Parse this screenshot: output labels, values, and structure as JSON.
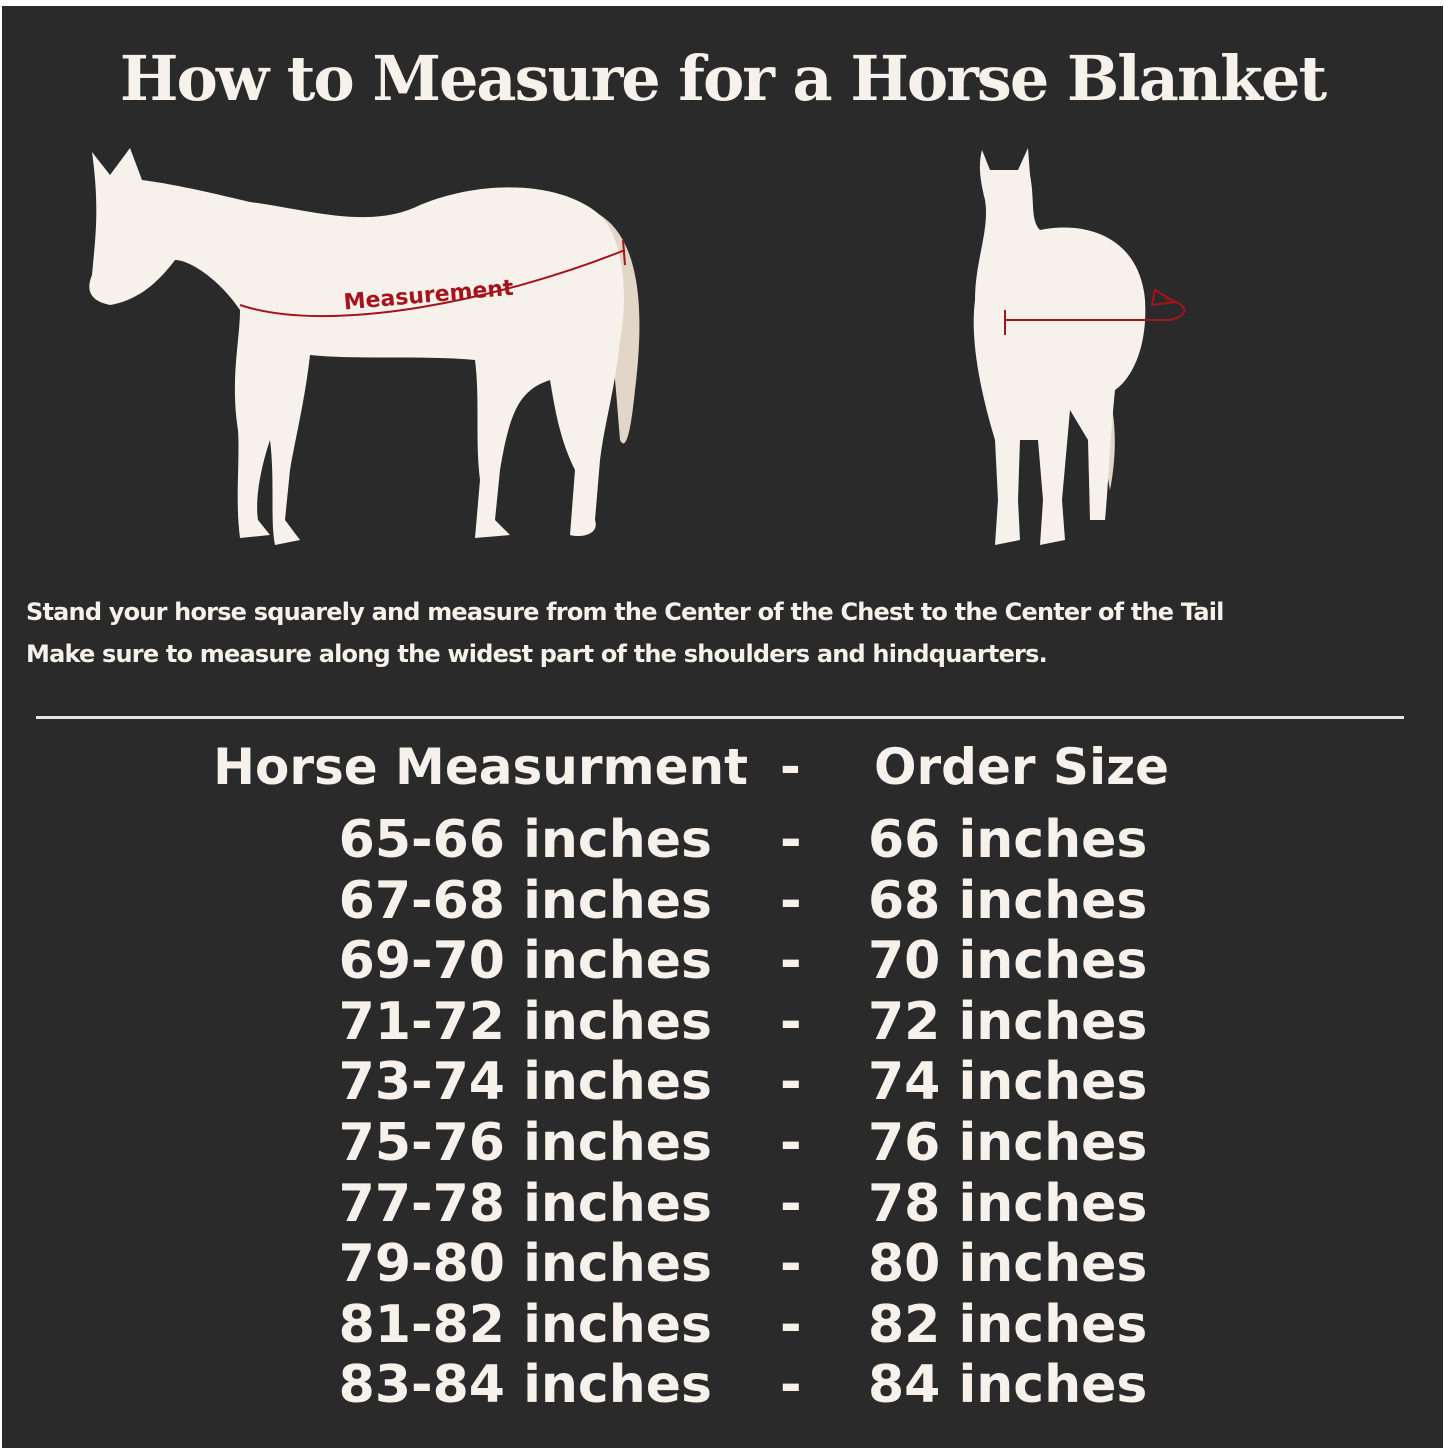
{
  "title": "How to Measure for a Horse Blanket",
  "diagram": {
    "side_label": "Measurement",
    "colors": {
      "background": "#2b2a2b",
      "horse": "#f6f1ea",
      "tail": "#e2d6c8",
      "measure_line": "#a3141c"
    }
  },
  "instructions": [
    "Stand your horse squarely and measure from the Center of the Chest to the Center of the Tail",
    "Make sure to measure along the widest part of the shoulders and hindquarters."
  ],
  "table": {
    "header": {
      "measurement": "Horse Measurment",
      "separator": "-",
      "size": "Order Size"
    },
    "rows": [
      {
        "measurement": "65-66 inches",
        "separator": "-",
        "size": "66 inches"
      },
      {
        "measurement": "67-68 inches",
        "separator": "-",
        "size": "68 inches"
      },
      {
        "measurement": "69-70 inches",
        "separator": "-",
        "size": "70 inches"
      },
      {
        "measurement": "71-72 inches",
        "separator": "-",
        "size": "72 inches"
      },
      {
        "measurement": "73-74 inches",
        "separator": "-",
        "size": "74 inches"
      },
      {
        "measurement": "75-76 inches",
        "separator": "-",
        "size": "76 inches"
      },
      {
        "measurement": "77-78 inches",
        "separator": "-",
        "size": "78 inches"
      },
      {
        "measurement": "79-80 inches",
        "separator": "-",
        "size": "80 inches"
      },
      {
        "measurement": "81-82 inches",
        "separator": "-",
        "size": "82 inches"
      },
      {
        "measurement": "83-84 inches",
        "separator": "-",
        "size": "84 inches"
      }
    ]
  }
}
